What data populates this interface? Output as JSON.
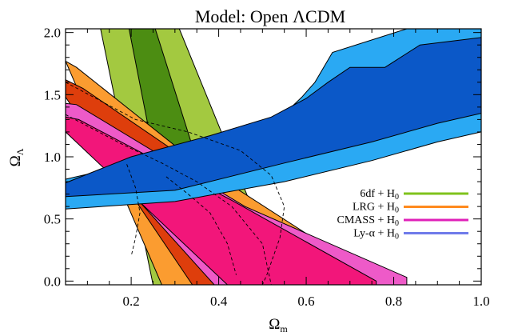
{
  "chart_data": {
    "type": "contour",
    "title": "Model: Open ΛCDM",
    "xlabel": {
      "main": "Ω",
      "sub": "m"
    },
    "ylabel": {
      "main": "Ω",
      "sub": "Λ"
    },
    "xlim": [
      0.05,
      1.0
    ],
    "ylim": [
      -0.03,
      2.03
    ],
    "xticks": [
      {
        "value": 0.2,
        "label": "0.2"
      },
      {
        "value": 0.4,
        "label": "0.4"
      },
      {
        "value": 0.6,
        "label": "0.6"
      },
      {
        "value": 0.8,
        "label": "0.8"
      },
      {
        "value": 1.0,
        "label": "1.0"
      }
    ],
    "yticks": [
      {
        "value": 0.0,
        "label": "0.0"
      },
      {
        "value": 0.5,
        "label": "0.5"
      },
      {
        "value": 1.0,
        "label": "1.0"
      },
      {
        "value": 1.5,
        "label": "1.5"
      },
      {
        "value": 2.0,
        "label": "2.0"
      }
    ],
    "legend_position": "lower-right",
    "legend": [
      {
        "label": "6df + H",
        "sub": "0",
        "color": "#7fc31c"
      },
      {
        "label": "LRG + H",
        "sub": "0",
        "color": "#ff8a1e"
      },
      {
        "label": "CMASS + H",
        "sub": "0",
        "color": "#e020b8"
      },
      {
        "label": "Ly-α + H",
        "sub": "0",
        "color": "#6f7bea"
      }
    ],
    "series": [
      {
        "name": "6df + H0",
        "outer_color": "#a3c940",
        "inner_color": "#4c8d12",
        "outer": [
          [
            0.13,
            2.03
          ],
          [
            0.31,
            2.03
          ],
          [
            0.545,
            0.0
          ],
          [
            0.38,
            -0.03
          ],
          [
            0.25,
            -0.03
          ]
        ],
        "inner": [
          [
            0.195,
            2.03
          ],
          [
            0.255,
            2.03
          ],
          [
            0.44,
            -0.03
          ],
          [
            0.31,
            -0.03
          ]
        ]
      },
      {
        "name": "LRG + H0",
        "outer_color": "#fb9c30",
        "inner_color": "#de3e0c",
        "outer": [
          [
            0.05,
            1.77
          ],
          [
            0.075,
            1.72
          ],
          [
            0.35,
            0.95
          ],
          [
            0.76,
            0.02
          ],
          [
            0.76,
            -0.03
          ],
          [
            0.27,
            -0.03
          ]
        ],
        "inner": [
          [
            0.05,
            1.62
          ],
          [
            0.09,
            1.55
          ],
          [
            0.36,
            0.9
          ],
          [
            0.58,
            -0.03
          ],
          [
            0.34,
            -0.03
          ],
          [
            0.05,
            1.48
          ]
        ]
      },
      {
        "name": "CMASS + H0",
        "outer_color": "#ee5ac8",
        "inner_color": "#f2167a",
        "outer": [
          [
            0.05,
            1.43
          ],
          [
            0.075,
            1.42
          ],
          [
            0.46,
            0.6
          ],
          [
            0.83,
            0.03
          ],
          [
            0.83,
            -0.03
          ],
          [
            0.39,
            -0.03
          ],
          [
            0.05,
            1.3
          ]
        ],
        "inner": [
          [
            0.05,
            1.32
          ],
          [
            0.08,
            1.3
          ],
          [
            0.43,
            0.65
          ],
          [
            0.76,
            0.0
          ],
          [
            0.76,
            -0.03
          ],
          [
            0.42,
            -0.03
          ],
          [
            0.05,
            1.2
          ]
        ]
      },
      {
        "name": "Ly-alpha + H0",
        "outer_color": "#2aa9f3",
        "inner_color": "#0b58c8",
        "outer": [
          [
            0.05,
            0.58
          ],
          [
            0.3,
            0.64
          ],
          [
            0.55,
            0.8
          ],
          [
            0.75,
            0.97
          ],
          [
            0.9,
            1.12
          ],
          [
            1.0,
            1.2
          ],
          [
            1.0,
            2.03
          ],
          [
            0.83,
            2.03
          ],
          [
            0.66,
            1.84
          ],
          [
            0.62,
            1.6
          ],
          [
            0.59,
            1.48
          ],
          [
            0.56,
            1.38
          ],
          [
            0.54,
            1.24
          ],
          [
            0.51,
            1.14
          ],
          [
            0.38,
            1.05
          ],
          [
            0.2,
            0.94
          ],
          [
            0.05,
            0.82
          ]
        ],
        "inner": [
          [
            0.05,
            0.68
          ],
          [
            0.3,
            0.73
          ],
          [
            0.55,
            0.95
          ],
          [
            0.75,
            1.12
          ],
          [
            0.9,
            1.27
          ],
          [
            1.0,
            1.35
          ],
          [
            1.0,
            1.96
          ],
          [
            0.86,
            1.9
          ],
          [
            0.78,
            1.72
          ],
          [
            0.7,
            1.72
          ],
          [
            0.65,
            1.6
          ],
          [
            0.6,
            1.47
          ],
          [
            0.52,
            1.32
          ],
          [
            0.38,
            1.17
          ],
          [
            0.2,
            1.0
          ],
          [
            0.05,
            0.79
          ]
        ]
      }
    ],
    "dashed_overlay": [
      [
        [
          0.05,
          1.6
        ],
        [
          0.21,
          1.3
        ],
        [
          0.33,
          1.2
        ],
        [
          0.45,
          1.05
        ],
        [
          0.52,
          0.85
        ],
        [
          0.55,
          0.6
        ],
        [
          0.54,
          0.35
        ],
        [
          0.51,
          0.05
        ],
        [
          0.5,
          -0.03
        ]
      ],
      [
        [
          0.05,
          1.34
        ],
        [
          0.18,
          1.1
        ],
        [
          0.27,
          0.95
        ],
        [
          0.35,
          0.8
        ],
        [
          0.43,
          0.6
        ],
        [
          0.5,
          0.3
        ],
        [
          0.52,
          -0.03
        ]
      ],
      [
        [
          0.19,
          0.94
        ],
        [
          0.21,
          0.75
        ],
        [
          0.22,
          0.55
        ],
        [
          0.21,
          0.35
        ],
        [
          0.2,
          0.2
        ]
      ],
      [
        [
          0.28,
          0.84
        ],
        [
          0.33,
          0.7
        ],
        [
          0.38,
          0.55
        ],
        [
          0.42,
          0.3
        ],
        [
          0.44,
          0.05
        ]
      ]
    ]
  }
}
